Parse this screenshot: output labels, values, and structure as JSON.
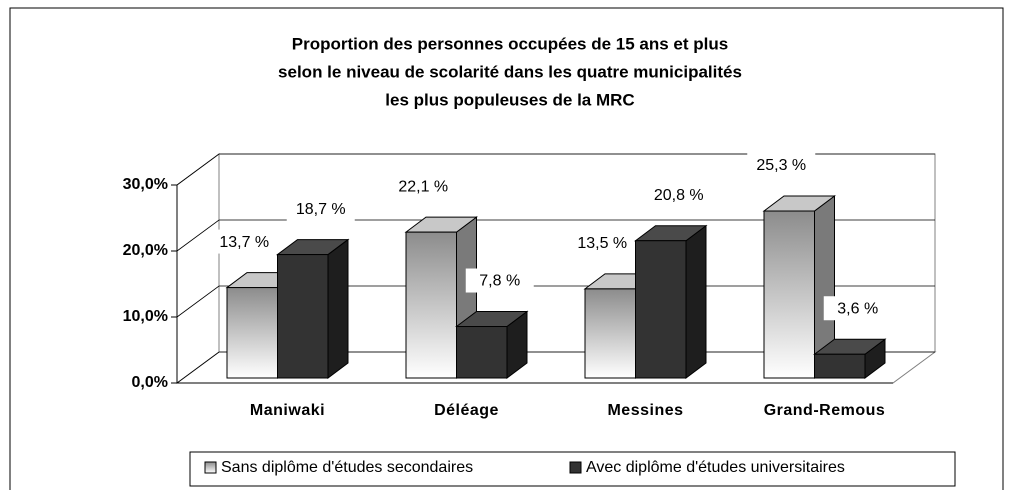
{
  "chart_data": {
    "type": "bar3d",
    "title": [
      "Proportion des personnes occupées de 15 ans et plus",
      "selon le niveau de scolarité dans les quatre municipalités",
      "les plus populeuses de la MRC"
    ],
    "categories": [
      "Maniwaki",
      "Déléage",
      "Messines",
      "Grand-Remous"
    ],
    "series": [
      {
        "name": "Sans diplôme d'études secondaires",
        "color": "#d9d9d9",
        "values": [
          13.7,
          22.1,
          13.5,
          25.3
        ],
        "value_labels": [
          "13,7 %",
          "22,1 %",
          "13,5 %",
          "25,3 %"
        ]
      },
      {
        "name": "Avec diplôme d'études universitaires",
        "color": "#333333",
        "values": [
          18.7,
          7.8,
          20.8,
          3.6
        ],
        "value_labels": [
          "18,7 %",
          "7,8 %",
          "20,8 %",
          "3,6 %"
        ]
      }
    ],
    "ylim": [
      0,
      30
    ],
    "yticks": [
      {
        "value": 0,
        "label": "0,0%"
      },
      {
        "value": 10,
        "label": "10,0%"
      },
      {
        "value": 20,
        "label": "20,0%"
      },
      {
        "value": 30,
        "label": "30,0%"
      }
    ],
    "grid": true,
    "legend": "bottom"
  }
}
